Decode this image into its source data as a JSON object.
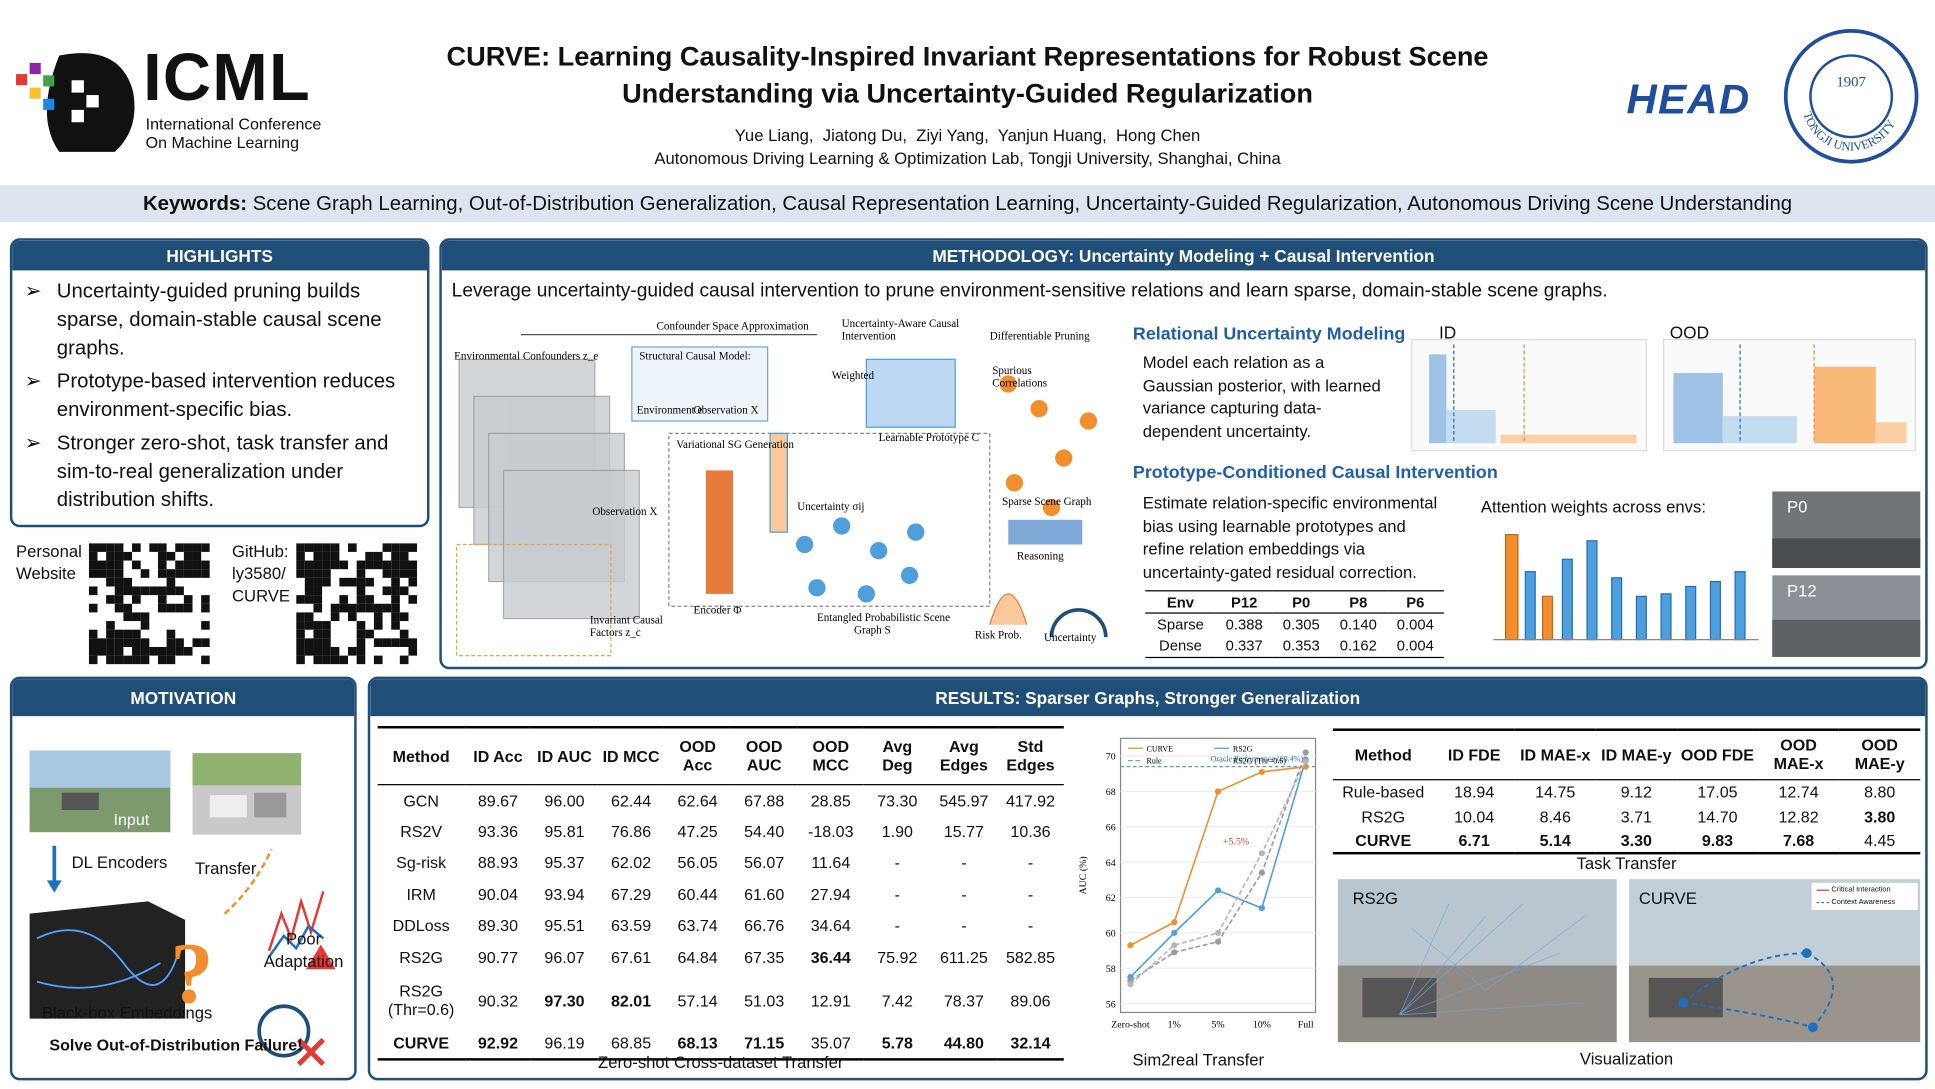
{
  "header": {
    "logo_acronym": "ICML",
    "logo_line1": "International Conference",
    "logo_line2": "On Machine Learning",
    "title": [
      "CURVE: Learning Causality-Inspired Invariant Representations for Robust Scene",
      "Understanding via Uncertainty-Guided Regularization"
    ],
    "authors": "Yue Liang,  Jiatong Du,  Ziyi Yang,  Yanjun Huang,  Hong Chen",
    "affiliation": "Autonomous Driving Learning & Optimization Lab, Tongji University, Shanghai, China",
    "lab_logo": "HEAD",
    "university_year": "1907",
    "university_name": "TONGJI UNIVERSITY"
  },
  "keywords": {
    "label": "Keywords:",
    "text": "Scene Graph Learning, Out-of-Distribution Generalization, Causal Representation Learning, Uncertainty-Guided Regularization, Autonomous Driving Scene Understanding"
  },
  "highlights": {
    "title": "HIGHLIGHTS",
    "items": [
      "Uncertainty-guided pruning builds sparse, domain-stable causal scene graphs.",
      "Prototype-based intervention reduces environment-specific bias.",
      "Stronger zero-shot, task transfer and sim-to-real generalization under distribution shifts."
    ]
  },
  "links": {
    "website": [
      "Personal",
      "Website"
    ],
    "github": [
      "GitHub:",
      "ly3580/",
      "CURVE"
    ]
  },
  "motivation": {
    "title": "MOTIVATION",
    "input": "Input",
    "encoders": "DL Encoders",
    "transfer": "Transfer",
    "poor": [
      "Poor",
      "Adaptation"
    ],
    "blackbox": "Black-box Embeddings",
    "goal": "Solve Out-of-Distribution Failure!"
  },
  "methodology": {
    "title": "METHODOLOGY: Uncertainty Modeling + Causal Intervention",
    "intro": "Leverage uncertainty-guided causal intervention to prune environment-sensitive relations and learn sparse, domain-stable scene graphs.",
    "figure": {
      "confounder": "Confounder Space Approximation",
      "env_conf": "Environmental Confounders z_e",
      "uaci": [
        "Uncertainty-Aware Causal",
        "Intervention"
      ],
      "scm": "Structural Causal Model:",
      "env": "Environment e",
      "obs": "Observation X",
      "weighted": "Weighted",
      "proto": "Learnable Prototype C",
      "pruning": "Differentiable Pruning",
      "spurious": [
        "Spurious",
        "Correlations"
      ],
      "vsg": "Variational SG Generation",
      "unc": "Uncertainty σij",
      "obs2": "Observation X",
      "encoder": "Encoder Φ",
      "sparse": "Sparse Scene Graph",
      "reasoning": "Reasoning",
      "entangled": [
        "Entangled Probabilistic Scene",
        "Graph S"
      ],
      "invariant": [
        "Invariant Causal",
        "Factors z_c"
      ],
      "risk": "Risk Prob.",
      "unc2": "Uncertainty"
    },
    "uncertainty_title": "Relational Uncertainty Modeling",
    "uncertainty_text": "Model each relation as a Gaussian posterior, with learned variance capturing data-dependent uncertainty.",
    "id": "ID",
    "ood": "OOD",
    "prototype_title": "Prototype-Conditioned Causal Intervention",
    "prototype_text": "Estimate relation-specific environmental bias using learnable prototypes and refine relation embeddings via uncertainty-gated residual correction.",
    "env_table": {
      "header": [
        "Env",
        "P12",
        "P0",
        "P8",
        "P6"
      ],
      "rows": [
        [
          "Sparse",
          "0.388",
          "0.305",
          "0.140",
          "0.004"
        ],
        [
          "Dense",
          "0.337",
          "0.353",
          "0.162",
          "0.004"
        ]
      ]
    },
    "attention": "Attention weights across envs:",
    "p0": "P0",
    "p12": "P12"
  },
  "results": {
    "title": "RESULTS: Sparser Graphs, Stronger Generalization",
    "zero_shot": {
      "header": [
        "Method",
        "ID Acc",
        "ID AUC",
        "ID MCC",
        "OOD Acc",
        "OOD AUC",
        "OOD MCC",
        "Avg Deg",
        "Avg Edges",
        "Std Edges"
      ],
      "rows": [
        [
          "GCN",
          "89.67",
          "96.00",
          "62.44",
          "62.64",
          "67.88",
          "28.85",
          "73.30",
          "545.97",
          "417.92"
        ],
        [
          "RS2V",
          "93.36",
          "95.81",
          "76.86",
          "47.25",
          "54.40",
          "-18.03",
          "1.90",
          "15.77",
          "10.36"
        ],
        [
          "Sg-risk",
          "88.93",
          "95.37",
          "62.02",
          "56.05",
          "56.07",
          "11.64",
          "-",
          "-",
          "-"
        ],
        [
          "IRM",
          "90.04",
          "93.94",
          "67.29",
          "60.44",
          "61.60",
          "27.94",
          "-",
          "-",
          "-"
        ],
        [
          "DDLoss",
          "89.30",
          "95.51",
          "63.59",
          "63.74",
          "66.76",
          "34.64",
          "-",
          "-",
          "-"
        ],
        [
          "RS2G",
          "90.77",
          "96.07",
          "67.61",
          "64.84",
          "67.35",
          "36.44",
          "75.92",
          "611.25",
          "582.85"
        ],
        [
          "RS2G (Thr=0.6)",
          "90.32",
          "97.30",
          "82.01",
          "57.14",
          "51.03",
          "12.91",
          "7.42",
          "78.37",
          "89.06"
        ],
        [
          "CURVE",
          "92.92",
          "96.19",
          "68.85",
          "68.13",
          "71.15",
          "35.07",
          "5.78",
          "44.80",
          "32.14"
        ]
      ],
      "emphasis": [
        [
          5,
          6
        ],
        [
          6,
          2
        ],
        [
          6,
          3
        ],
        [
          7,
          0
        ],
        [
          7,
          1
        ],
        [
          7,
          4
        ],
        [
          7,
          5
        ],
        [
          7,
          7
        ],
        [
          7,
          8
        ],
        [
          7,
          9
        ]
      ],
      "caption": "Zero-shot Cross-dataset Transfer"
    },
    "sim2real": {
      "type": "line",
      "ylabel": "AUC (%)",
      "categories": [
        "Zero-shot",
        "1%",
        "5%",
        "10%",
        "Full"
      ],
      "series": [
        {
          "name": "CURVE",
          "color": "#f28e2b",
          "values": [
            59.3,
            60.6,
            68.0,
            69.1,
            69.4
          ]
        },
        {
          "name": "RS2G",
          "color": "#4e9fdc",
          "values": [
            57.5,
            60.0,
            62.4,
            61.4,
            69.8
          ]
        },
        {
          "name": "Rule",
          "color": "#9a9a9a",
          "values": [
            57.3,
            58.9,
            59.5,
            63.4,
            70.2
          ]
        },
        {
          "name": "RS2G (Thr=0.6)",
          "color": "#b5b5b5",
          "values": [
            57.1,
            59.3,
            60.0,
            64.5,
            69.7
          ]
        }
      ],
      "ylim": [
        55.5,
        71
      ],
      "yticks": [
        56,
        58,
        60,
        62,
        64,
        66,
        68,
        70
      ],
      "oracle": 69.4,
      "oracle_label": "Oracle Performance (69.4%)",
      "gain": "+5.5%",
      "caption": "Sim2real Transfer"
    },
    "task": {
      "header": [
        "Method",
        "ID  FDE",
        "ID MAE-x",
        "ID MAE-y",
        "OOD FDE",
        "OOD MAE-x",
        "OOD MAE-y"
      ],
      "rows": [
        [
          "Rule-based",
          "18.94",
          "14.75",
          "9.12",
          "17.05",
          "12.74",
          "8.80"
        ],
        [
          "RS2G",
          "10.04",
          "8.46",
          "3.71",
          "14.70",
          "12.82",
          "3.80"
        ],
        [
          "CURVE",
          "6.71",
          "5.14",
          "3.30",
          "9.83",
          "7.68",
          "4.45"
        ]
      ],
      "emphasis": [
        [
          1,
          6
        ],
        [
          2,
          0
        ],
        [
          2,
          1
        ],
        [
          2,
          2
        ],
        [
          2,
          3
        ],
        [
          2,
          4
        ],
        [
          2,
          5
        ]
      ],
      "caption": "Task Transfer"
    },
    "visualization": {
      "left": "RS2G",
      "right": "CURVE",
      "legend": [
        "Critical Interaction",
        "Context Awareness"
      ],
      "caption": "Visualization"
    }
  }
}
